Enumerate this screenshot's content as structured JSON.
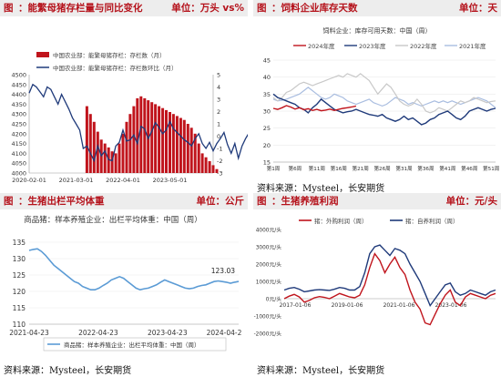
{
  "panels": [
    {
      "tag": "图",
      "title": "：能繁母猪存栏量与同比变化",
      "unit": "单位：万头 vs%",
      "source": ""
    },
    {
      "tag": "图",
      "title": "：饲料企业库存天数",
      "unit": "单位：天",
      "source": "资料来源：Mysteel，长安期货"
    },
    {
      "tag": "图",
      "title": "：生猪出栏平均体重",
      "unit": "单位：公斤",
      "source": "资料来源：Mysteel，长安期货"
    },
    {
      "tag": "图",
      "title": "：生猪养殖利润",
      "unit": "单位：元/头",
      "source": "资料来源：Mysteel，长安期货"
    }
  ],
  "colors": {
    "accent": "#b5121b",
    "navy": "#1f3a7a",
    "red": "#c0141c",
    "light1": "#e8a0a3",
    "light2": "#a9bde0",
    "light3": "#c8c8c8",
    "blue": "#5b9bd5"
  },
  "chart_data": [
    {
      "type": "bar",
      "title": "",
      "legend": [
        "中国农业部：能繁母猪存栏：存栏数（月）",
        "中国农业部：能繁母猪存栏：存栏数环比（月）"
      ],
      "x_ticks": [
        "2020-02-01",
        "2021-03-01",
        "2022-04-01",
        "2023-05-01"
      ],
      "yleft_ticks": [
        4000,
        4050,
        4100,
        4150,
        4200,
        4250,
        4300,
        4350,
        4400,
        4450,
        4500
      ],
      "yright_ticks": [
        -3,
        -2,
        -1,
        0,
        1,
        2,
        3,
        4,
        5
      ],
      "ylim_left": [
        4000,
        4500
      ],
      "ylim_right": [
        -3,
        5
      ],
      "bar_series": {
        "name": "中国农业部：能繁母猪存栏：存栏数（月）",
        "start": "2021-06",
        "values": [
          4340,
          4300,
          4260,
          4210,
          4170,
          4150,
          4130,
          4110,
          4100,
          4150,
          4200,
          4260,
          4300,
          4340,
          4380,
          4390,
          4380,
          4370,
          4360,
          4350,
          4340,
          4330,
          4320,
          4310,
          4300,
          4290,
          4280,
          4270,
          4250,
          4230,
          4200,
          4150,
          4100,
          4080,
          4060,
          4040,
          4020
        ]
      },
      "line_series": {
        "name": "中国农业部：能繁母猪存栏：存栏数环比（月）",
        "start": "2020-02",
        "values": [
          3.5,
          4.2,
          4.0,
          3.6,
          3.2,
          4.0,
          3.8,
          3.2,
          2.6,
          3.4,
          2.8,
          2.2,
          1.5,
          1.0,
          0.5,
          -1.0,
          -0.8,
          -1.4,
          -2.0,
          -0.8,
          -1.6,
          -1.2,
          -1.9,
          -2.0,
          -0.8,
          -0.5,
          0.5,
          -0.4,
          -0.3,
          0.1,
          -0.6,
          0.8,
          0.6,
          -0.2,
          0.4,
          1.1,
          0.7,
          0.2,
          0.5,
          1.2,
          0.6,
          0.3,
          0.0,
          -0.3,
          -0.5,
          -0.8,
          -0.2,
          0.2,
          -0.6,
          -1.0,
          -0.5,
          -1.2,
          -0.6,
          -0.2,
          0.3,
          -0.7,
          -1.4,
          -0.6,
          -1.8,
          -0.8,
          -0.2,
          0.3,
          -0.6,
          0.4,
          0.8
        ]
      }
    },
    {
      "type": "line",
      "title": "饲料企业：库存可用天数：中国（周）",
      "x_ticks": [
        "第1周",
        "第6周",
        "第11周",
        "第16周",
        "第21周",
        "第26周",
        "第31周",
        "第36周",
        "第41周",
        "第46周",
        "第51周"
      ],
      "y_ticks": [
        15,
        20,
        25,
        30,
        35,
        40,
        45
      ],
      "ylim": [
        15,
        45
      ],
      "series": [
        {
          "name": "2024年度",
          "values": [
            30.8,
            30.5,
            31.0,
            31.6,
            31.2,
            30.6,
            31.0,
            30.4,
            30.7,
            30.2,
            30.5,
            30.1,
            30.3,
            30.6,
            30.2,
            30.5,
            30.8,
            31.0,
            31.2,
            31.5
          ]
        },
        {
          "name": "2023年度",
          "values": [
            35.0,
            34.0,
            33.5,
            33.0,
            32.5,
            32.0,
            31.0,
            30.5,
            29.5,
            31.0,
            32.0,
            33.5,
            32.5,
            31.5,
            30.5,
            30.0,
            29.5,
            29.8,
            30.0,
            30.5,
            30.0,
            29.5,
            29.0,
            28.8,
            28.5,
            29.0,
            28.0,
            27.5,
            27.0,
            27.5,
            28.5,
            27.5,
            28.0,
            27.0,
            26.0,
            26.5,
            27.5,
            28.0,
            29.0,
            29.5,
            30.0,
            29.0,
            28.0,
            27.5,
            28.5,
            30.0,
            30.5,
            31.0,
            30.5,
            30.0,
            30.5,
            30.8
          ]
        },
        {
          "name": "2022年度",
          "values": [
            34.0,
            33.0,
            34.0,
            35.5,
            36.0,
            37.0,
            38.0,
            38.5,
            38.0,
            37.5,
            38.0,
            38.5,
            39.0,
            39.5,
            40.0,
            40.5,
            40.0,
            41.0,
            40.5,
            40.0,
            41.0,
            40.0,
            39.0,
            37.0,
            35.0,
            36.5,
            38.0,
            37.0,
            35.0,
            33.0,
            32.0,
            31.5,
            32.0,
            33.5,
            32.0,
            30.0,
            29.5,
            30.0,
            31.0,
            30.5,
            30.0,
            31.0,
            32.0,
            33.0,
            32.5,
            33.0,
            34.0,
            33.5,
            33.0,
            32.5,
            32.8,
            33.0
          ]
        },
        {
          "name": "2021年度",
          "values": [
            33.5,
            33.0,
            33.2,
            33.5,
            34.0,
            34.5,
            35.0,
            36.0,
            37.0,
            36.0,
            35.0,
            34.0,
            33.5,
            34.0,
            35.0,
            34.5,
            34.0,
            33.0,
            32.5,
            32.0,
            32.5,
            33.0,
            33.5,
            32.5,
            32.0,
            31.5,
            32.0,
            33.0,
            34.0,
            33.5,
            33.0,
            32.0,
            32.5,
            32.0,
            31.5,
            32.0,
            32.5,
            33.0,
            32.5,
            33.0,
            32.5,
            33.0,
            32.5,
            32.0,
            32.5,
            33.0,
            33.5,
            34.0,
            33.5,
            33.0,
            32.0,
            31.0
          ]
        }
      ]
    },
    {
      "type": "line",
      "title": "商品猪：样本养殖企业：出栏平均体重：中国（周）",
      "x_ticks": [
        "2021-04-23",
        "2022-04-23",
        "2023-04-23",
        "2024-04-2"
      ],
      "y_ticks": [
        110,
        115,
        120,
        125,
        130,
        135
      ],
      "ylim": [
        110,
        135
      ],
      "last_value_label": "123.03",
      "legend": [
        "商品猪：样本养殖企业：出栏平均体重：中国（周）"
      ],
      "series": [
        {
          "name": "商品猪：样本养殖企业：出栏平均体重：中国（周）",
          "values": [
            132.5,
            132.8,
            133.0,
            132.2,
            131.0,
            129.5,
            128.0,
            127.0,
            126.0,
            125.0,
            124.0,
            123.0,
            122.5,
            121.5,
            121.0,
            120.5,
            120.5,
            121.0,
            121.8,
            122.5,
            123.5,
            124.0,
            124.5,
            124.0,
            123.0,
            122.0,
            121.0,
            120.5,
            120.8,
            121.0,
            121.5,
            122.0,
            122.8,
            123.5,
            123.0,
            122.5,
            122.0,
            121.5,
            121.0,
            120.8,
            121.0,
            121.5,
            121.8,
            122.0,
            122.5,
            123.0,
            123.2,
            123.0,
            122.8,
            122.5,
            122.8,
            123.03
          ]
        }
      ]
    },
    {
      "type": "line",
      "title": "",
      "legend": [
        "猪：外购利润（周）",
        "猪：自养利润（周）"
      ],
      "x_ticks": [
        "2017-01-06",
        "2019-01-06",
        "2021-01-06",
        "2023-01-06"
      ],
      "y_ticks": [
        "-2000元/头",
        "-1000元/头",
        "0元/头",
        "1000元/头",
        "2000元/头",
        "3000元/头",
        "4000元/头"
      ],
      "ylim": [
        -2000,
        4000
      ],
      "series": [
        {
          "name": "猪：外购利润（周）",
          "values": [
            0,
            150,
            250,
            100,
            -200,
            -100,
            50,
            120,
            80,
            0,
            150,
            300,
            200,
            100,
            50,
            200,
            800,
            1800,
            2600,
            2200,
            1500,
            2000,
            2400,
            1800,
            1400,
            500,
            -200,
            -600,
            -1400,
            -1500,
            -900,
            -300,
            200,
            500,
            -200,
            -400,
            100,
            300,
            200,
            100,
            0,
            200,
            300
          ]
        },
        {
          "name": "猪：自养利润（周）",
          "values": [
            500,
            600,
            650,
            550,
            400,
            450,
            500,
            520,
            500,
            480,
            550,
            650,
            600,
            500,
            500,
            700,
            1500,
            2600,
            3000,
            3100,
            2800,
            2500,
            2900,
            2800,
            2600,
            2000,
            1500,
            1000,
            300,
            -400,
            0,
            400,
            800,
            900,
            400,
            200,
            300,
            500,
            400,
            300,
            200,
            400,
            500
          ]
        }
      ]
    }
  ]
}
